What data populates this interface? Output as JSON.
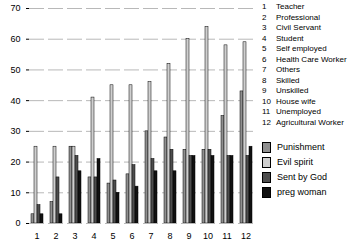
{
  "chart_data": {
    "type": "bar",
    "categories": [
      "1",
      "2",
      "3",
      "4",
      "5",
      "6",
      "7",
      "8",
      "9",
      "10",
      "11",
      "12"
    ],
    "category_names": [
      "Teacher",
      "Professional",
      "Civil Servant",
      "Student",
      "Self employed",
      "Health Care Worker",
      "Others",
      "Skilled",
      "Unskilled",
      "House wife",
      "Unemployed",
      "Agricultural Worker"
    ],
    "series": [
      {
        "name": "Punishment",
        "color": "#8f8f8f",
        "values": [
          3,
          7,
          25,
          15,
          13,
          16,
          30,
          28,
          24,
          24,
          35,
          43
        ]
      },
      {
        "name": "Evil spirit",
        "color": "#cfcfcf",
        "values": [
          25,
          25,
          25,
          41,
          45,
          45,
          46,
          52,
          60,
          64,
          58,
          59
        ]
      },
      {
        "name": "Sent by God",
        "color": "#4d4d4d",
        "values": [
          6,
          15,
          22,
          15,
          14,
          19,
          21,
          24,
          22,
          24,
          22,
          22
        ]
      },
      {
        "name": "preg woman",
        "color": "#111111",
        "values": [
          3,
          3,
          17,
          21,
          10,
          12,
          17,
          17,
          22,
          22,
          22,
          25
        ]
      }
    ],
    "ylim": [
      0,
      70
    ],
    "yticks": [
      0,
      10,
      20,
      30,
      40,
      50,
      60,
      70
    ],
    "grid": true,
    "legend": "right"
  }
}
